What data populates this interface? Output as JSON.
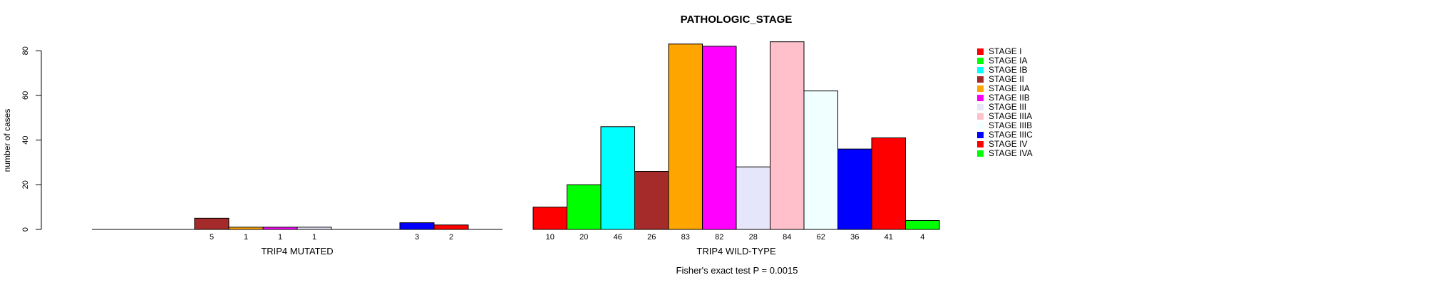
{
  "chart_data": {
    "type": "bar",
    "title": "PATHOLOGIC_STAGE",
    "ylabel": "number of cases",
    "footer": "Fisher's exact test P = 0.0015",
    "ylim": [
      0,
      80
    ],
    "yticks": [
      0,
      20,
      40,
      60,
      80
    ],
    "grid": false,
    "legend_position": "top-right",
    "axis_color": "#000000",
    "bar_border_color": "#000000",
    "categories": [
      "STAGE I",
      "STAGE IA",
      "STAGE IB",
      "STAGE II",
      "STAGE IIA",
      "STAGE IIB",
      "STAGE III",
      "STAGE IIIA",
      "STAGE IIIB",
      "STAGE IIIC",
      "STAGE IV",
      "STAGE IVA"
    ],
    "colors": [
      "#FF0000",
      "#00FF00",
      "#00FFFF",
      "#A52A2A",
      "#FFA500",
      "#FF00FF",
      "#E6E6FA",
      "#FFC0CB",
      "#F0FFFF",
      "#0000FF",
      "#FF0000",
      "#00FF00"
    ],
    "series": [
      {
        "name": "TRIP4 MUTATED",
        "values": [
          0,
          0,
          0,
          5,
          1,
          1,
          1,
          0,
          0,
          3,
          2,
          0
        ]
      },
      {
        "name": "TRIP4 WILD-TYPE",
        "values": [
          10,
          20,
          46,
          26,
          83,
          82,
          28,
          84,
          62,
          36,
          41,
          4
        ]
      }
    ],
    "bar_value_labels_visible_only_when_nonzero": true
  }
}
